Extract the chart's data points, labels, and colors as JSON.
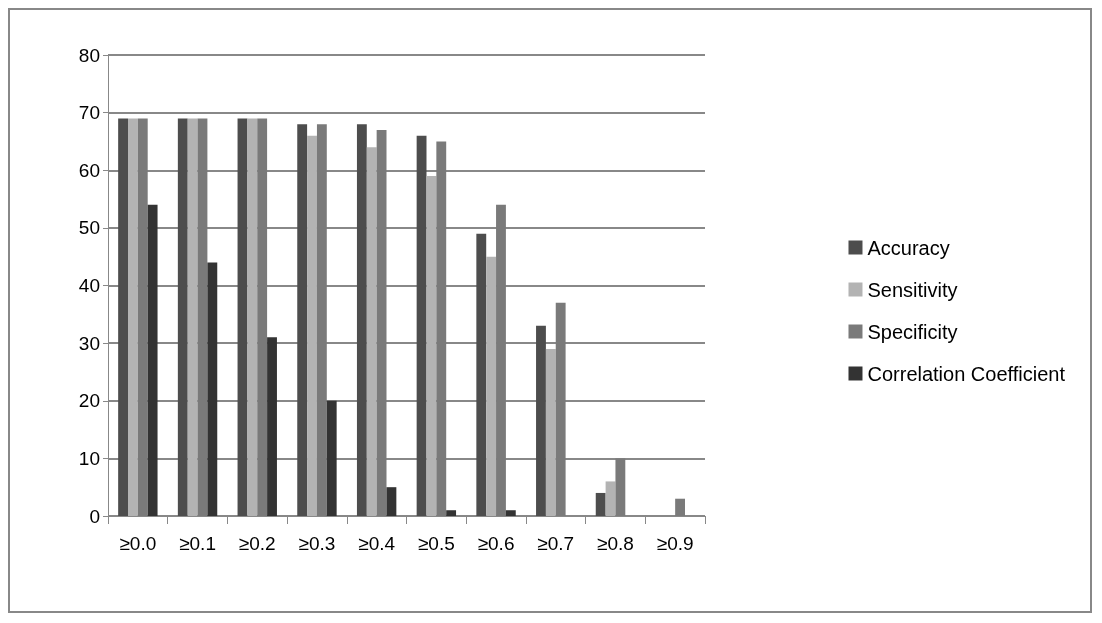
{
  "chart_data": {
    "type": "bar",
    "categories": [
      "≥0.0",
      "≥0.1",
      "≥0.2",
      "≥0.3",
      "≥0.4",
      "≥0.5",
      "≥0.6",
      "≥0.7",
      "≥0.8",
      "≥0.9"
    ],
    "series": [
      {
        "name": "Accuracy",
        "color": "#4d4d4d",
        "values": [
          69,
          69,
          69,
          68,
          68,
          66,
          49,
          33,
          4,
          0
        ]
      },
      {
        "name": "Sensitivity",
        "color": "#b3b3b3",
        "values": [
          69,
          69,
          69,
          66,
          64,
          59,
          45,
          29,
          6,
          0
        ]
      },
      {
        "name": "Specificity",
        "color": "#7a7a7a",
        "values": [
          69,
          69,
          69,
          68,
          67,
          65,
          54,
          37,
          10,
          3
        ]
      },
      {
        "name": "Correlation Coefficient",
        "color": "#333333",
        "values": [
          54,
          44,
          31,
          20,
          5,
          1,
          1,
          0,
          0,
          0
        ]
      }
    ],
    "ylim": [
      0,
      80
    ],
    "yticks": [
      0,
      10,
      20,
      30,
      40,
      50,
      60,
      70,
      80
    ],
    "grid": "y",
    "legend": "right"
  }
}
